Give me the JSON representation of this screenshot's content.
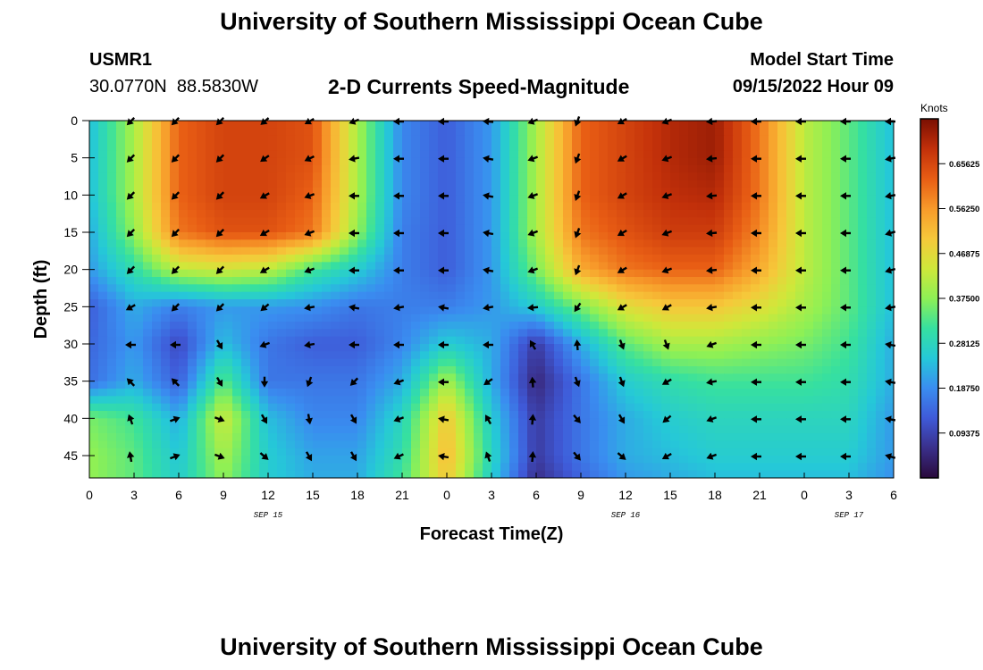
{
  "page": {
    "title": "University of Southern Mississippi Ocean Cube",
    "footer_title": "University of Southern Mississippi Ocean Cube",
    "station_id": "USMR1",
    "station_coords": "30.0770N  88.5830W",
    "subtitle": "2-D Currents Speed-Magnitude",
    "model_start_label": "Model Start Time",
    "model_start_value": "09/15/2022 Hour 09"
  },
  "chart_data": {
    "type": "heatmap",
    "title": "2-D Currents Speed-Magnitude",
    "xlabel": "Forecast Time(Z)",
    "ylabel": "Depth (ft)",
    "x_hours": [
      0,
      54
    ],
    "x_ticks": [
      {
        "hour": 0,
        "label": "0"
      },
      {
        "hour": 3,
        "label": "3"
      },
      {
        "hour": 6,
        "label": "6"
      },
      {
        "hour": 9,
        "label": "9"
      },
      {
        "hour": 12,
        "label": "12"
      },
      {
        "hour": 15,
        "label": "15"
      },
      {
        "hour": 18,
        "label": "18"
      },
      {
        "hour": 21,
        "label": "21"
      },
      {
        "hour": 24,
        "label": "0"
      },
      {
        "hour": 27,
        "label": "3"
      },
      {
        "hour": 30,
        "label": "6"
      },
      {
        "hour": 33,
        "label": "9"
      },
      {
        "hour": 36,
        "label": "12"
      },
      {
        "hour": 39,
        "label": "15"
      },
      {
        "hour": 42,
        "label": "18"
      },
      {
        "hour": 45,
        "label": "21"
      },
      {
        "hour": 48,
        "label": "0"
      },
      {
        "hour": 51,
        "label": "3"
      },
      {
        "hour": 54,
        "label": "6"
      }
    ],
    "date_labels": [
      {
        "hour": 12,
        "label": "SEP 15"
      },
      {
        "hour": 36,
        "label": "SEP 16"
      },
      {
        "hour": 51,
        "label": "SEP 17"
      }
    ],
    "y_ticks": [
      0,
      5,
      10,
      15,
      20,
      25,
      30,
      35,
      40,
      45
    ],
    "ylim": [
      0,
      48
    ],
    "colorbar": {
      "unit": "Knots",
      "range": [
        0,
        0.75
      ],
      "tick_values": [
        0.09375,
        0.1875,
        0.28125,
        0.375,
        0.46875,
        0.5625,
        0.65625
      ],
      "tick_labels": [
        "0.09375",
        "0.18750",
        "0.28125",
        "0.37500",
        "0.46875",
        "0.56250",
        "0.65625"
      ],
      "colors": [
        "#2a0a3c",
        "#3a2f8a",
        "#3f5ad8",
        "#3a8df0",
        "#25c8d8",
        "#36e0a0",
        "#8ef055",
        "#cfe83a",
        "#f6c83a",
        "#f79a2a",
        "#e85d14",
        "#c2300a",
        "#7a0f02"
      ]
    },
    "vector_hours": [
      3,
      6,
      9,
      12,
      15,
      18,
      21,
      24,
      27,
      30,
      33,
      36,
      39,
      42,
      45,
      48,
      51,
      54
    ],
    "vector_depths": [
      0,
      5,
      10,
      15,
      20,
      25,
      30,
      35,
      40,
      45
    ],
    "speed_grid_hours": [
      0,
      3,
      6,
      9,
      12,
      15,
      18,
      21,
      24,
      27,
      30,
      33,
      36,
      39,
      42,
      45,
      48,
      51,
      54
    ],
    "speed_grid_depths": [
      0,
      5,
      10,
      15,
      20,
      25,
      30,
      35,
      40,
      45,
      48
    ],
    "speed_knots": [
      [
        0.24,
        0.4,
        0.62,
        0.66,
        0.66,
        0.64,
        0.4,
        0.18,
        0.13,
        0.2,
        0.4,
        0.62,
        0.66,
        0.7,
        0.72,
        0.6,
        0.42,
        0.34,
        0.24
      ],
      [
        0.24,
        0.4,
        0.62,
        0.66,
        0.66,
        0.64,
        0.4,
        0.18,
        0.13,
        0.2,
        0.4,
        0.62,
        0.66,
        0.7,
        0.72,
        0.6,
        0.42,
        0.34,
        0.24
      ],
      [
        0.24,
        0.4,
        0.62,
        0.66,
        0.66,
        0.62,
        0.4,
        0.18,
        0.13,
        0.2,
        0.4,
        0.62,
        0.66,
        0.69,
        0.7,
        0.6,
        0.42,
        0.34,
        0.24
      ],
      [
        0.22,
        0.38,
        0.6,
        0.64,
        0.64,
        0.6,
        0.38,
        0.17,
        0.13,
        0.2,
        0.4,
        0.6,
        0.64,
        0.67,
        0.67,
        0.58,
        0.42,
        0.34,
        0.24
      ],
      [
        0.2,
        0.3,
        0.42,
        0.44,
        0.42,
        0.32,
        0.26,
        0.17,
        0.13,
        0.2,
        0.36,
        0.54,
        0.6,
        0.62,
        0.62,
        0.54,
        0.42,
        0.34,
        0.24
      ],
      [
        0.13,
        0.22,
        0.17,
        0.2,
        0.2,
        0.19,
        0.16,
        0.17,
        0.17,
        0.2,
        0.26,
        0.36,
        0.46,
        0.5,
        0.5,
        0.46,
        0.4,
        0.34,
        0.24
      ],
      [
        0.14,
        0.2,
        0.1,
        0.24,
        0.16,
        0.13,
        0.13,
        0.18,
        0.26,
        0.22,
        0.08,
        0.22,
        0.34,
        0.4,
        0.4,
        0.38,
        0.36,
        0.32,
        0.22
      ],
      [
        0.15,
        0.22,
        0.13,
        0.34,
        0.16,
        0.16,
        0.16,
        0.22,
        0.4,
        0.22,
        0.05,
        0.16,
        0.26,
        0.3,
        0.32,
        0.32,
        0.32,
        0.3,
        0.22
      ],
      [
        0.36,
        0.32,
        0.22,
        0.44,
        0.24,
        0.18,
        0.18,
        0.28,
        0.5,
        0.26,
        0.08,
        0.16,
        0.22,
        0.26,
        0.28,
        0.28,
        0.28,
        0.28,
        0.2
      ],
      [
        0.38,
        0.34,
        0.25,
        0.4,
        0.26,
        0.21,
        0.21,
        0.3,
        0.52,
        0.28,
        0.08,
        0.16,
        0.22,
        0.24,
        0.26,
        0.26,
        0.26,
        0.26,
        0.2
      ],
      [
        0.38,
        0.34,
        0.26,
        0.38,
        0.26,
        0.22,
        0.22,
        0.32,
        0.5,
        0.26,
        0.06,
        0.14,
        0.2,
        0.22,
        0.24,
        0.24,
        0.24,
        0.24,
        0.19
      ]
    ],
    "direction_deg_math": [
      [
        225,
        225,
        225,
        220,
        210,
        200,
        180,
        180,
        175,
        200,
        250,
        210,
        200,
        185,
        180,
        180,
        180,
        180
      ],
      [
        225,
        225,
        225,
        215,
        205,
        190,
        180,
        180,
        170,
        200,
        250,
        210,
        200,
        185,
        180,
        180,
        180,
        190
      ],
      [
        225,
        225,
        225,
        210,
        200,
        180,
        180,
        180,
        170,
        200,
        250,
        210,
        200,
        185,
        180,
        180,
        180,
        190
      ],
      [
        225,
        225,
        225,
        210,
        200,
        180,
        180,
        180,
        170,
        200,
        250,
        210,
        200,
        185,
        180,
        180,
        180,
        195
      ],
      [
        225,
        225,
        225,
        210,
        200,
        180,
        180,
        180,
        170,
        200,
        250,
        210,
        200,
        185,
        180,
        180,
        180,
        195
      ],
      [
        210,
        225,
        225,
        220,
        190,
        170,
        190,
        170,
        190,
        185,
        235,
        210,
        210,
        190,
        180,
        180,
        180,
        190
      ],
      [
        180,
        180,
        300,
        200,
        190,
        180,
        180,
        180,
        180,
        120,
        95,
        290,
        290,
        200,
        180,
        180,
        180,
        170
      ],
      [
        135,
        135,
        300,
        270,
        250,
        225,
        200,
        180,
        215,
        95,
        290,
        290,
        210,
        190,
        180,
        180,
        180,
        170
      ],
      [
        110,
        20,
        340,
        300,
        280,
        300,
        200,
        170,
        120,
        85,
        310,
        300,
        220,
        200,
        180,
        180,
        180,
        170
      ],
      [
        100,
        20,
        340,
        320,
        300,
        300,
        205,
        170,
        110,
        85,
        310,
        320,
        210,
        200,
        180,
        180,
        180,
        165
      ]
    ]
  }
}
